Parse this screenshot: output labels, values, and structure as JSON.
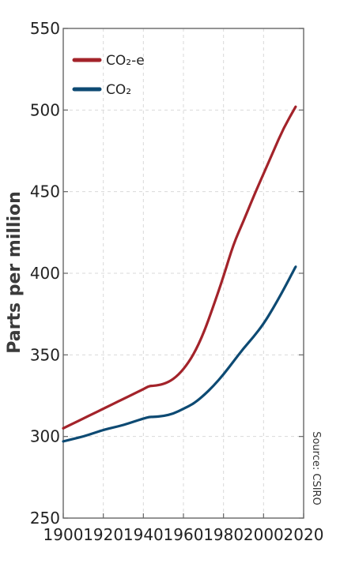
{
  "chart_data": {
    "type": "line",
    "title": "",
    "xlabel": "",
    "ylabel": "Parts per million",
    "xlim": [
      1900,
      2020
    ],
    "ylim": [
      250,
      550
    ],
    "x_ticks": [
      1900,
      1920,
      1940,
      1960,
      1980,
      2000,
      2020
    ],
    "y_ticks": [
      250,
      300,
      350,
      400,
      450,
      500,
      550
    ],
    "grid": true,
    "legend_position": "top-left",
    "source": "Source: CSIRO",
    "series": [
      {
        "name": "CO₂-e",
        "color": "#a3232a",
        "x": [
          1900,
          1905,
          1910,
          1915,
          1920,
          1925,
          1930,
          1935,
          1940,
          1943,
          1945,
          1950,
          1955,
          1960,
          1965,
          1970,
          1975,
          1980,
          1985,
          1990,
          1995,
          2000,
          2005,
          2010,
          2016
        ],
        "y": [
          305,
          308,
          311,
          314,
          317,
          320,
          323,
          326,
          329,
          331,
          331,
          332,
          335,
          341,
          350,
          363,
          380,
          398,
          418,
          432,
          447,
          461,
          475,
          489,
          502
        ]
      },
      {
        "name": "CO₂",
        "color": "#0d4a73",
        "x": [
          1900,
          1905,
          1910,
          1915,
          1920,
          1925,
          1930,
          1935,
          1940,
          1943,
          1945,
          1950,
          1955,
          1960,
          1965,
          1970,
          1975,
          1980,
          1985,
          1990,
          1995,
          2000,
          2005,
          2010,
          2016
        ],
        "y": [
          297,
          298.5,
          300,
          302,
          304,
          305.5,
          307,
          309,
          311,
          312,
          312,
          312.5,
          314,
          317,
          320,
          325,
          331,
          338,
          346,
          354,
          361,
          369,
          379,
          390,
          404
        ]
      }
    ]
  }
}
